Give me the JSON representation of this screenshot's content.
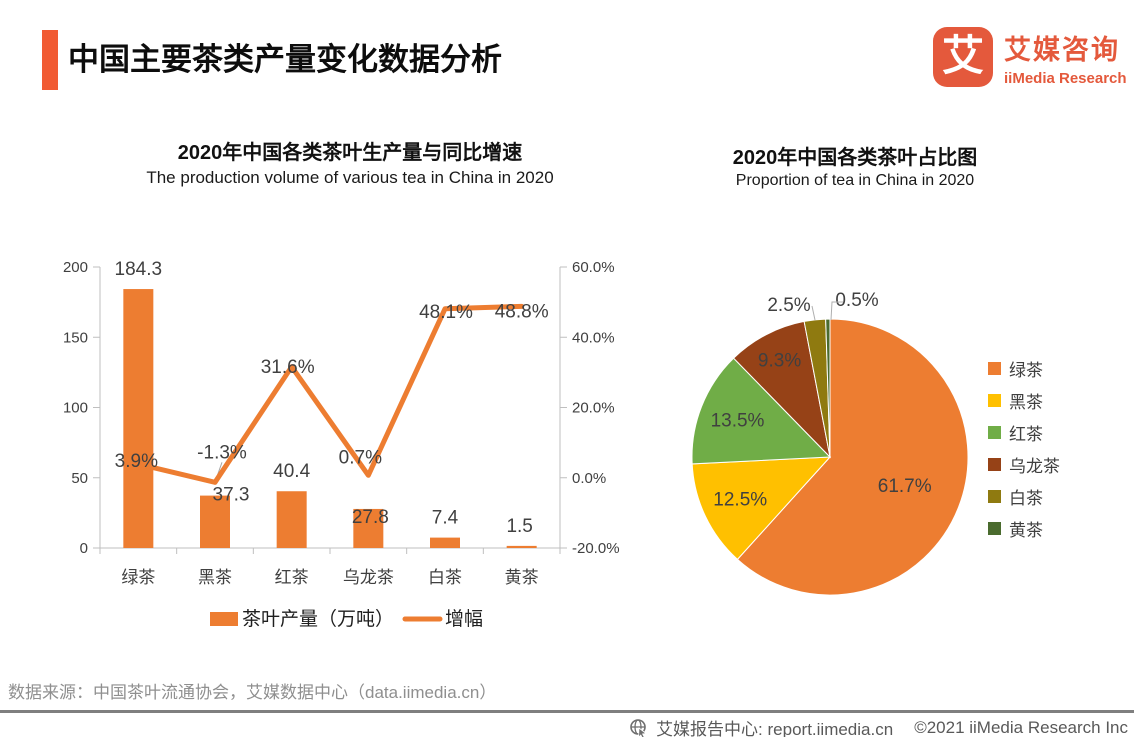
{
  "header": {
    "title": "中国主要茶类产量变化数据分析",
    "brand": {
      "logo_glyph": "艾",
      "name_cn": "艾媒咨询",
      "name_en": "iiMedia Research"
    }
  },
  "accent_color": "#F15B33",
  "brand_color": "#E4593C",
  "chart_data": [
    {
      "type": "bar",
      "subtype": "bar+line combo",
      "title": "2020年中国各类茶叶生产量与同比增速",
      "subtitle": "The production volume of various tea in China in 2020",
      "categories": [
        "绿茶",
        "黑茶",
        "红茶",
        "乌龙茶",
        "白茶",
        "黄茶"
      ],
      "series": [
        {
          "name": "茶叶产量（万吨）",
          "kind": "bar",
          "axis": "left",
          "color": "#ED7D31",
          "values": [
            184.3,
            37.3,
            40.4,
            27.8,
            7.4,
            1.5
          ],
          "labels": [
            "184.3",
            "37.3",
            "40.4",
            "27.8",
            "7.4",
            "1.5"
          ]
        },
        {
          "name": "增幅",
          "kind": "line",
          "axis": "right",
          "color": "#ED7D31",
          "values": [
            3.9,
            -1.3,
            31.6,
            0.7,
            48.1,
            48.8
          ],
          "labels": [
            "3.9%",
            "-1.3%",
            "31.6%",
            "0.7%",
            "48.1%",
            "48.8%"
          ]
        }
      ],
      "left_axis": {
        "min": 0,
        "max": 200,
        "ticks": [
          0,
          50,
          100,
          150,
          200
        ]
      },
      "right_axis": {
        "min": -20,
        "max": 60,
        "ticks": [
          "-20.0%",
          "0.0%",
          "20.0%",
          "40.0%",
          "60.0%"
        ]
      },
      "grid": false,
      "legend_position": "bottom",
      "axis_color": "#BFBFBF",
      "text_color": "#404040"
    },
    {
      "type": "pie",
      "title": "2020年中国各类茶叶占比图",
      "subtitle": "Proportion of tea in China in 2020",
      "start_angle_deg": 0,
      "direction": "clockwise",
      "legend_position": "right",
      "slices": [
        {
          "label": "绿茶",
          "value": 61.7,
          "display": "61.7%",
          "color": "#ED7D31"
        },
        {
          "label": "黑茶",
          "value": 12.5,
          "display": "12.5%",
          "color": "#FFC000"
        },
        {
          "label": "红茶",
          "value": 13.5,
          "display": "13.5%",
          "color": "#70AD47"
        },
        {
          "label": "乌龙茶",
          "value": 9.3,
          "display": "9.3%",
          "color": "#964217"
        },
        {
          "label": "白茶",
          "value": 2.5,
          "display": "2.5%",
          "color": "#8F7A10"
        },
        {
          "label": "黄茶",
          "value": 0.5,
          "display": "0.5%",
          "color": "#4A6B2E"
        }
      ],
      "text_color": "#404040"
    }
  ],
  "footer": {
    "source": "数据来源：中国茶叶流通协会，艾媒数据中心（data.iimedia.cn）"
  },
  "bottom_bar": {
    "icon": "globe-cursor-icon",
    "report_center": "艾媒报告中心: report.iimedia.cn",
    "copyright": "©2021  iiMedia Research Inc"
  }
}
